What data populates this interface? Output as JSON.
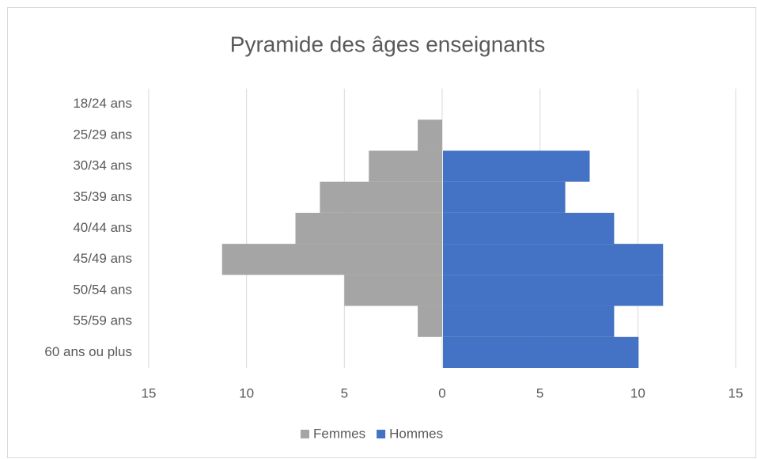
{
  "chart_data": {
    "type": "pyramid",
    "title": "Pyramide des âges enseignants",
    "categories": [
      "18/24 ans",
      "25/29 ans",
      "30/34 ans",
      "35/39 ans",
      "40/44 ans",
      "45/49 ans",
      "50/54 ans",
      "55/59 ans",
      "60 ans ou plus"
    ],
    "series": [
      {
        "name": "Femmes",
        "color": "#a5a5a5",
        "values": [
          0,
          -1.25,
          -3.75,
          -6.25,
          -7.5,
          -11.25,
          -5,
          -1.25,
          0
        ]
      },
      {
        "name": "Hommes",
        "color": "#4472c4",
        "values": [
          0,
          0,
          7.5,
          6.25,
          8.75,
          11.25,
          11.25,
          8.75,
          10
        ]
      }
    ],
    "xlim": [
      -15,
      15
    ],
    "xticks": [
      {
        "value": -15,
        "label": "15"
      },
      {
        "value": -10,
        "label": "10"
      },
      {
        "value": -5,
        "label": "5"
      },
      0,
      5,
      10,
      15
    ],
    "grid": true,
    "legend": "bottom"
  }
}
